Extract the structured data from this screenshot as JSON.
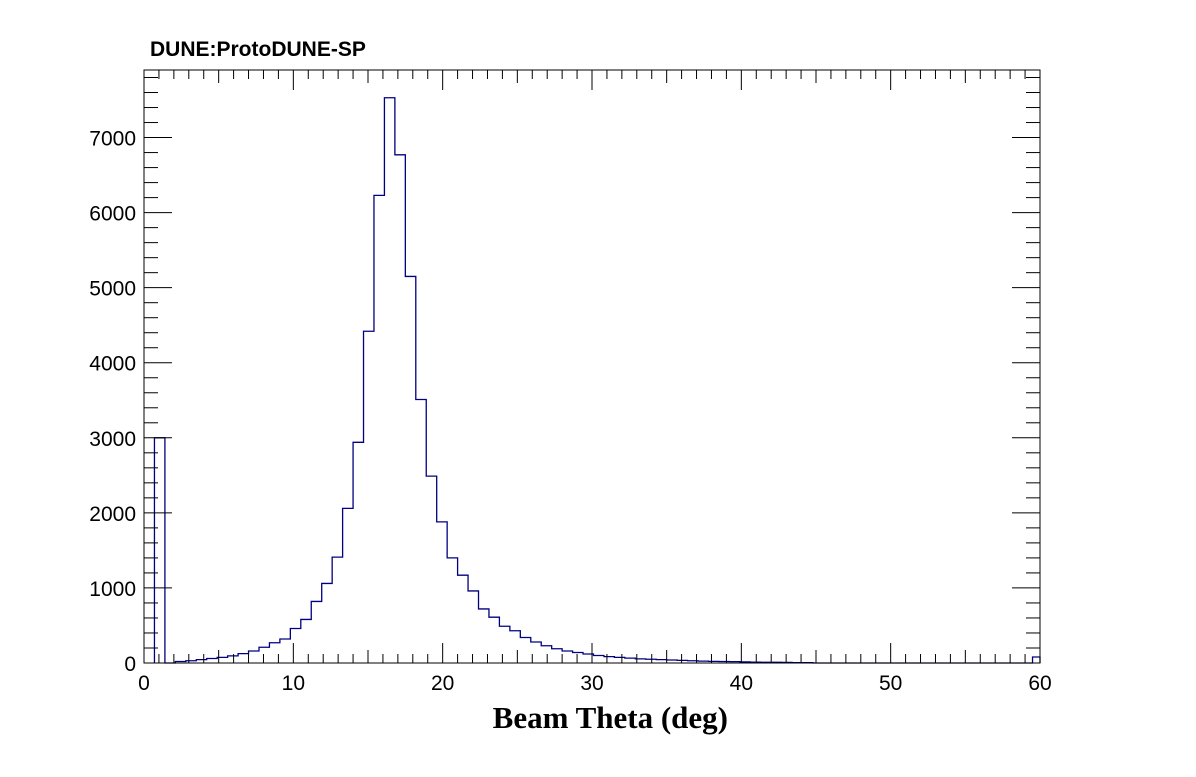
{
  "chart_data": {
    "type": "histogram",
    "experiment_label": "DUNE:ProtoDUNE-SP",
    "title": "",
    "xlabel": "Beam Theta (deg)",
    "ylabel": "",
    "xlim": [
      0,
      60
    ],
    "ylim": [
      0,
      7900
    ],
    "bin_width": 0.7,
    "x_ticks": [
      0,
      10,
      20,
      30,
      40,
      50,
      60
    ],
    "y_ticks": [
      0,
      1000,
      2000,
      3000,
      4000,
      5000,
      6000,
      7000
    ],
    "x_tick_labels": [
      "0",
      "10",
      "20",
      "30",
      "40",
      "50",
      "60"
    ],
    "y_tick_labels": [
      "0",
      "1000",
      "2000",
      "3000",
      "4000",
      "5000",
      "6000",
      "7000"
    ],
    "grid": false,
    "legend": "none",
    "line_color": "#000080",
    "bin_edges_start": 0.7,
    "counts": [
      3000,
      0,
      20,
      30,
      45,
      60,
      75,
      95,
      125,
      160,
      210,
      270,
      320,
      460,
      580,
      820,
      1060,
      1410,
      2060,
      2940,
      4420,
      6230,
      7530,
      6770,
      5150,
      3510,
      2490,
      1880,
      1400,
      1170,
      960,
      720,
      610,
      490,
      430,
      340,
      280,
      230,
      190,
      160,
      140,
      120,
      100,
      85,
      75,
      65,
      55,
      50,
      45,
      40,
      35,
      30,
      25,
      22,
      20,
      18,
      15,
      12,
      10,
      10,
      8,
      5,
      5,
      0,
      0,
      0,
      0,
      0,
      0,
      0,
      0,
      0,
      0,
      0,
      0,
      0,
      0,
      0,
      0,
      0,
      0,
      0,
      0,
      0,
      80
    ]
  }
}
